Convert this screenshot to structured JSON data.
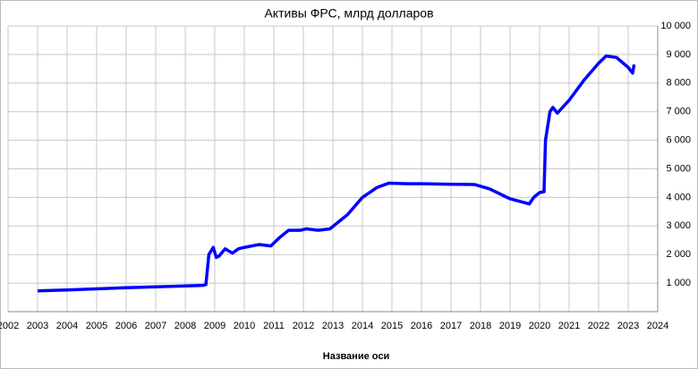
{
  "chart_data": {
    "type": "line",
    "title": "Активы ФРС, млрд долларов",
    "x_label": "Название оси",
    "x": [
      2003.0,
      2004.0,
      2005.0,
      2006.0,
      2007.0,
      2008.0,
      2008.6,
      2008.7,
      2008.8,
      2008.95,
      2009.05,
      2009.15,
      2009.35,
      2009.6,
      2009.8,
      2010.0,
      2010.5,
      2010.9,
      2011.2,
      2011.5,
      2011.9,
      2012.1,
      2012.5,
      2012.9,
      2013.5,
      2014.0,
      2014.5,
      2014.9,
      2015.5,
      2016.0,
      2017.0,
      2017.8,
      2018.3,
      2019.0,
      2019.65,
      2019.8,
      2020.0,
      2020.15,
      2020.2,
      2020.35,
      2020.45,
      2020.6,
      2021.0,
      2021.5,
      2022.0,
      2022.25,
      2022.6,
      2023.0,
      2023.15,
      2023.2
    ],
    "series": [
      {
        "name": "Активы ФРС",
        "color": "#0000ff",
        "values": [
          730,
          760,
          800,
          840,
          870,
          900,
          920,
          950,
          2000,
          2250,
          1900,
          1950,
          2200,
          2050,
          2200,
          2250,
          2350,
          2300,
          2600,
          2850,
          2850,
          2900,
          2850,
          2900,
          3400,
          4000,
          4350,
          4500,
          4480,
          4480,
          4460,
          4450,
          4300,
          3950,
          3770,
          4000,
          4170,
          4200,
          6000,
          7000,
          7150,
          6950,
          7400,
          8100,
          8700,
          8950,
          8900,
          8550,
          8350,
          8650
        ]
      }
    ],
    "xlim": [
      2002,
      2024
    ],
    "xticks": [
      2002,
      2003,
      2004,
      2005,
      2006,
      2007,
      2008,
      2009,
      2010,
      2011,
      2012,
      2013,
      2014,
      2015,
      2016,
      2017,
      2018,
      2019,
      2020,
      2021,
      2022,
      2023,
      2024
    ],
    "ylim": [
      0,
      10000
    ],
    "yticks": [
      {
        "value": 1000,
        "label": "1 000"
      },
      {
        "value": 2000,
        "label": "2 000"
      },
      {
        "value": 3000,
        "label": "3 000"
      },
      {
        "value": 4000,
        "label": "4 000"
      },
      {
        "value": 5000,
        "label": "5 000"
      },
      {
        "value": 6000,
        "label": "6 000"
      },
      {
        "value": 7000,
        "label": "7 000"
      },
      {
        "value": 8000,
        "label": "8 000"
      },
      {
        "value": 9000,
        "label": "9 000"
      },
      {
        "value": 10000,
        "label": "10 000"
      }
    ],
    "grid": true
  }
}
